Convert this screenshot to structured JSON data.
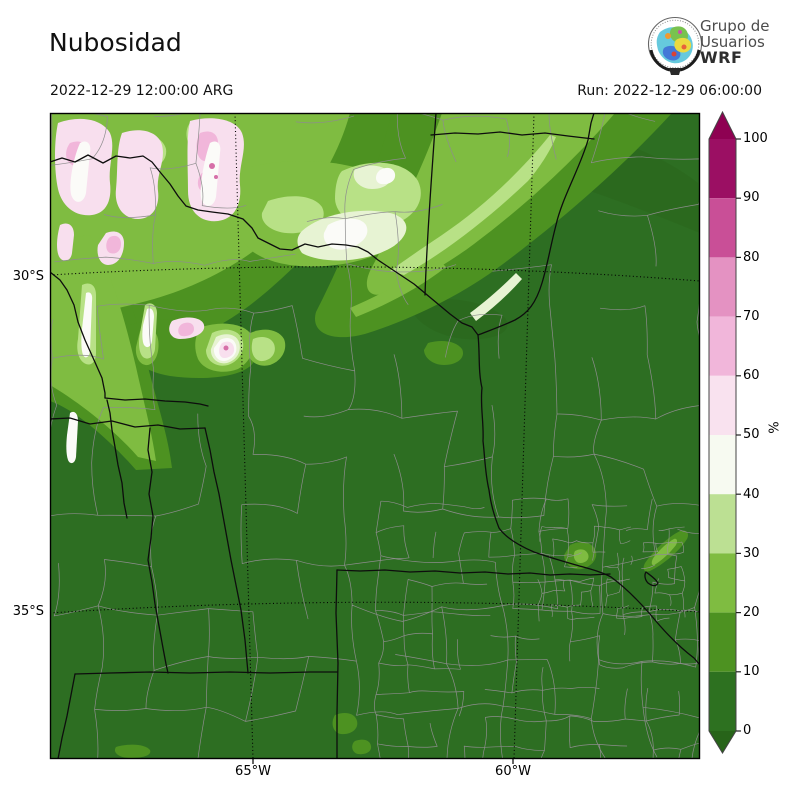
{
  "header": {
    "title": "Nubosidad",
    "valid_time": "2022-12-29 12:00:00 ARG",
    "run_label": "Run: 2022-12-29 06:00:00"
  },
  "logo": {
    "line1": "Grupo de",
    "line2": "Usuarios",
    "line3": "WRF"
  },
  "map": {
    "variable": "Nubosidad",
    "units": "%",
    "lat_tick_labels": [
      "30°S",
      "35°S"
    ],
    "lon_tick_labels": [
      "65°W",
      "60°W"
    ]
  },
  "colorbar": {
    "unit_label": "%",
    "scale": {
      "min": 0,
      "max": 100,
      "step": 10
    },
    "tick_labels": [
      "100",
      "90",
      "80",
      "70",
      "60",
      "50",
      "40",
      "30",
      "20",
      "10",
      "0"
    ],
    "levels_top_to_bottom": [
      "#9b0f63",
      "#c94f97",
      "#e492c2",
      "#f1b6da",
      "#f9e2ef",
      "#f7faf1",
      "#bce093",
      "#7fbc41",
      "#4d9221",
      "#2d7120"
    ],
    "arrow_over": "#8e0152",
    "arrow_under": "#276419"
  },
  "palette": {
    "b0": "#2d6e22",
    "b10": "#4d9221",
    "b20": "#7fbc41",
    "b30": "#b8e186",
    "b40": "#e7f3d3",
    "b50": "#f8dfee",
    "b60": "#f1b6da",
    "mid": "#fbfbf8",
    "dot": "#d66fa8",
    "dark": "#29661b"
  }
}
